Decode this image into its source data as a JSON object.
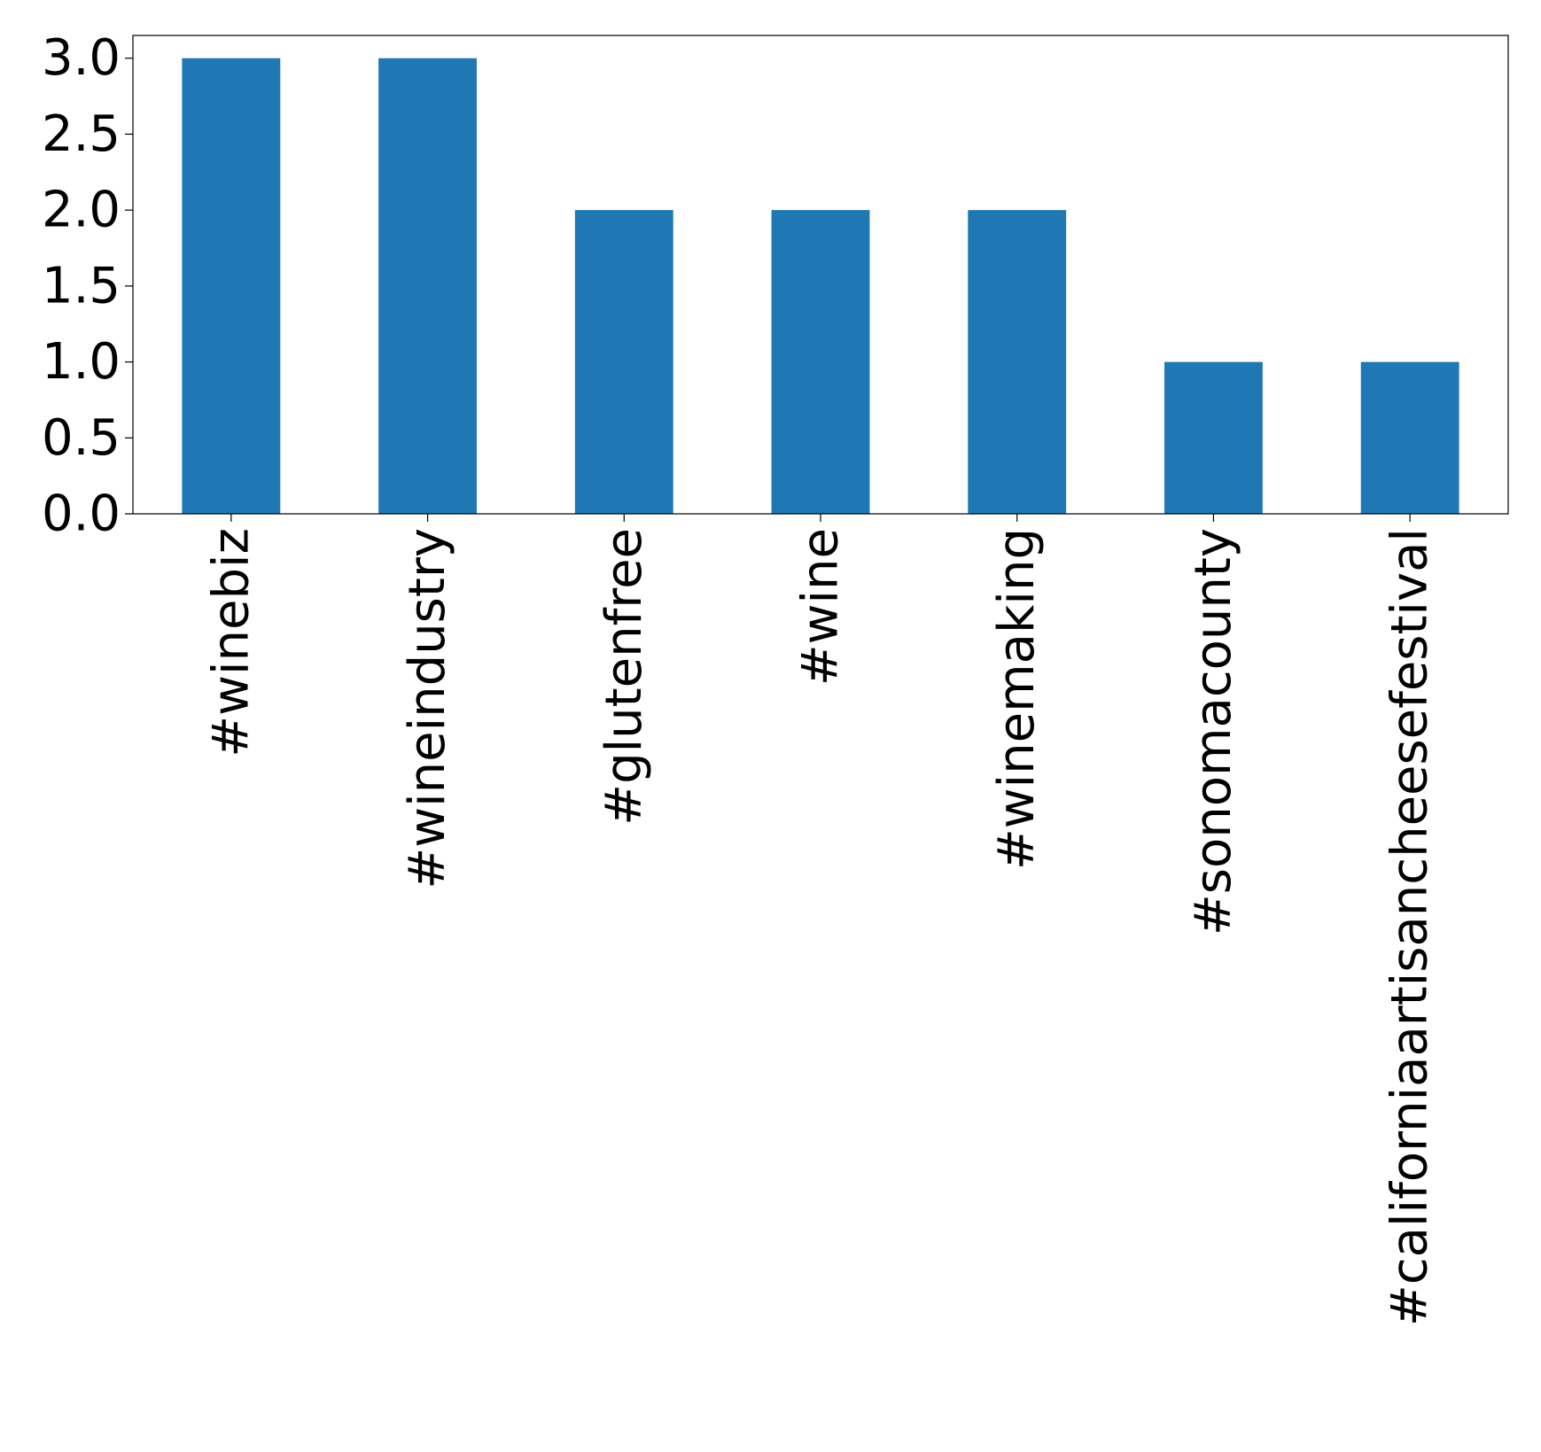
{
  "chart_data": {
    "type": "bar",
    "categories": [
      "#winebiz",
      "#wineindustry",
      "#glutenfree",
      "#wine",
      "#winemaking",
      "#sonomacounty",
      "#californiaartisancheesefestival"
    ],
    "values": [
      3,
      3,
      2,
      2,
      2,
      1,
      1
    ],
    "ylim": [
      0,
      3.15
    ],
    "yticks": [
      0.0,
      0.5,
      1.0,
      1.5,
      2.0,
      2.5,
      3.0
    ],
    "ytick_labels": [
      "0.0",
      "0.5",
      "1.0",
      "1.5",
      "2.0",
      "2.5",
      "3.0"
    ],
    "bar_color": "#1f77b4",
    "grid": false,
    "legend": "none"
  }
}
